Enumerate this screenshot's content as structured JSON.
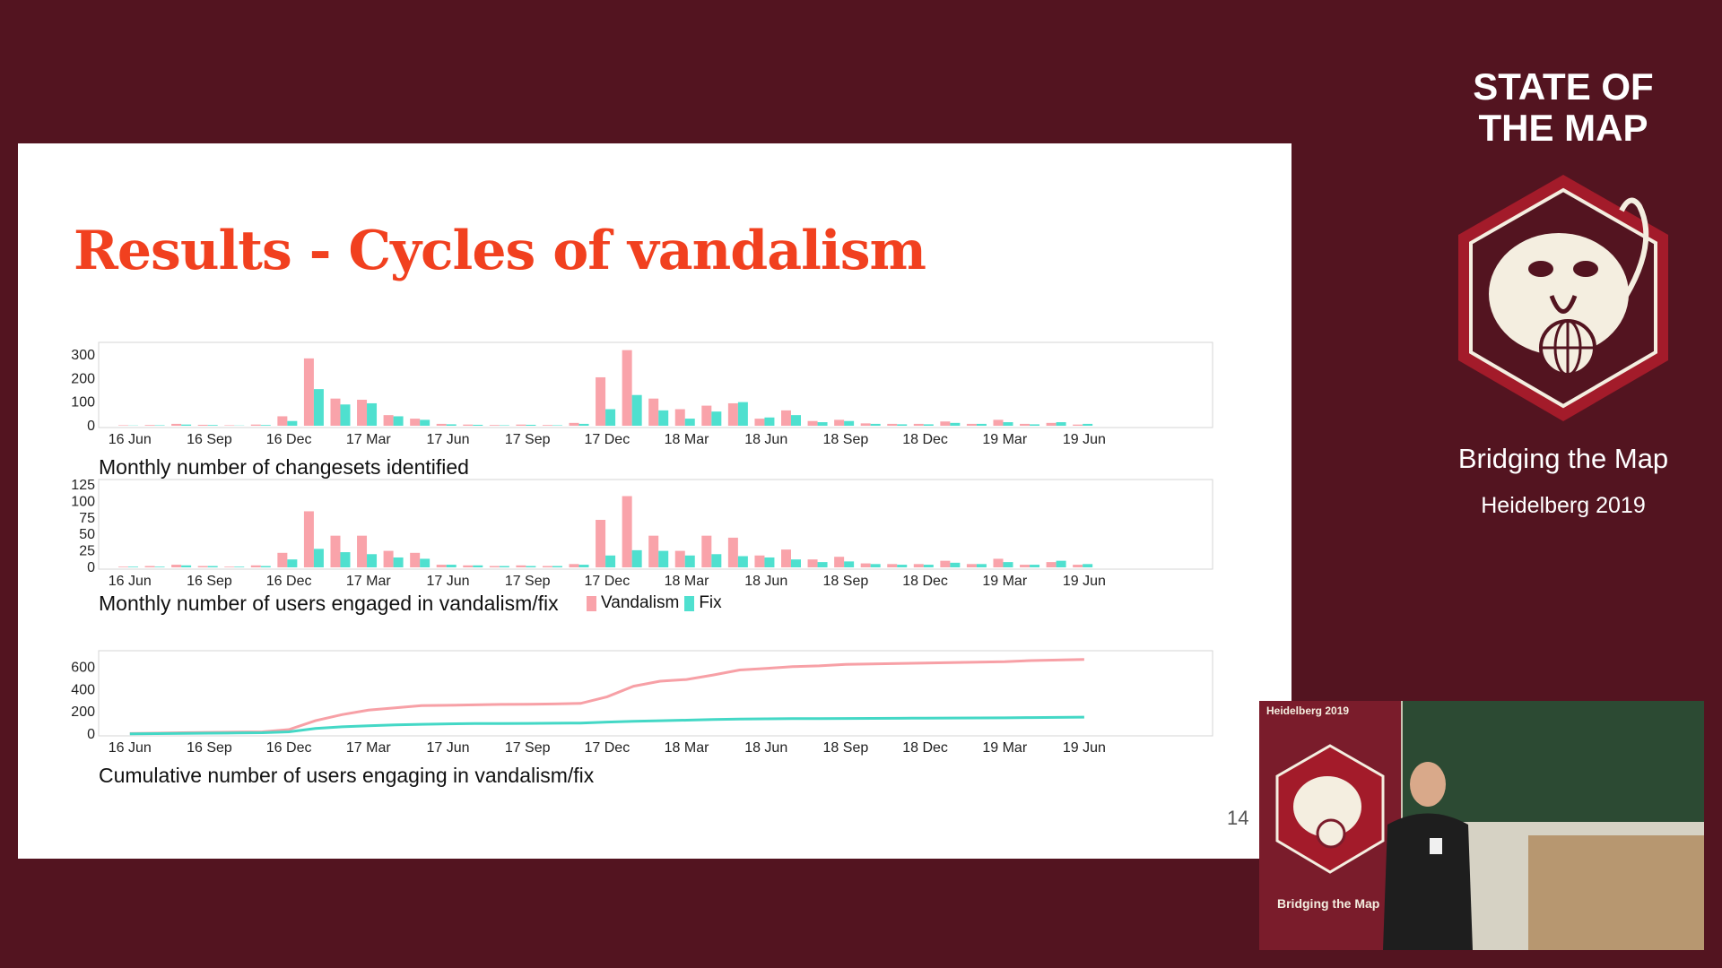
{
  "slide": {
    "title": "Results - Cycles of vandalism",
    "number": "14",
    "legend": {
      "vandalism": "Vandalism",
      "fix": "Fix"
    }
  },
  "colors": {
    "vandalism": "#f9a3aa",
    "fix": "#4fe0cf",
    "vandalism_line": "#f7a0a6",
    "fix_line": "#44d8c6",
    "title": "#f1401f",
    "background": "#531420"
  },
  "sidebar": {
    "brand_line1": "STATE OF",
    "brand_line2": "THE MAP",
    "tagline": "Bridging the Map",
    "event": "Heidelberg 2019"
  },
  "video": {
    "banner_city": "Heidelberg 2019",
    "banner_tagline": "Bridging the Map"
  },
  "chart_data": [
    {
      "type": "bar",
      "title": "Monthly number of changesets identified",
      "x_tick_labels": [
        "16 Jun",
        "16 Sep",
        "16 Dec",
        "17 Mar",
        "17 Jun",
        "17 Sep",
        "17 Dec",
        "18 Mar",
        "18 Jun",
        "18 Sep",
        "18 Dec",
        "19 Mar",
        "19 Jun"
      ],
      "yticks": [
        0,
        100,
        200,
        300
      ],
      "ylim": [
        0,
        330
      ],
      "categories": [
        "16 Jun",
        "16 Jul",
        "16 Aug",
        "16 Sep",
        "16 Oct",
        "16 Nov",
        "16 Dec",
        "17 Jan",
        "17 Feb",
        "17 Mar",
        "17 Apr",
        "17 May",
        "17 Jun",
        "17 Jul",
        "17 Aug",
        "17 Sep",
        "17 Oct",
        "17 Nov",
        "17 Dec",
        "18 Jan",
        "18 Feb",
        "18 Mar",
        "18 Apr",
        "18 May",
        "18 Jun",
        "18 Jul",
        "18 Aug",
        "18 Sep",
        "18 Oct",
        "18 Nov",
        "18 Dec",
        "19 Jan",
        "19 Feb",
        "19 Mar",
        "19 Apr",
        "19 May",
        "19 Jun"
      ],
      "series": [
        {
          "name": "Vandalism",
          "values": [
            2,
            3,
            8,
            4,
            2,
            5,
            40,
            285,
            115,
            110,
            45,
            30,
            8,
            5,
            3,
            5,
            3,
            12,
            205,
            320,
            115,
            70,
            85,
            95,
            30,
            65,
            20,
            25,
            10,
            8,
            8,
            18,
            8,
            25,
            8,
            12,
            5
          ]
        },
        {
          "name": "Fix",
          "values": [
            1,
            2,
            5,
            3,
            1,
            3,
            20,
            155,
            90,
            95,
            40,
            25,
            6,
            4,
            2,
            4,
            2,
            8,
            70,
            130,
            65,
            30,
            60,
            100,
            35,
            45,
            15,
            20,
            8,
            6,
            6,
            12,
            8,
            15,
            6,
            15,
            8
          ]
        }
      ]
    },
    {
      "type": "bar",
      "title": "Monthly number of users engaged in vandalism/fix",
      "x_tick_labels": [
        "16 Jun",
        "16 Sep",
        "16 Dec",
        "17 Mar",
        "17 Jun",
        "17 Sep",
        "17 Dec",
        "18 Mar",
        "18 Jun",
        "18 Sep",
        "18 Dec",
        "19 Mar",
        "19 Jun"
      ],
      "yticks": [
        0,
        25,
        50,
        75,
        100,
        125
      ],
      "ylim": [
        0,
        125
      ],
      "categories": [
        "16 Jun",
        "16 Jul",
        "16 Aug",
        "16 Sep",
        "16 Oct",
        "16 Nov",
        "16 Dec",
        "17 Jan",
        "17 Feb",
        "17 Mar",
        "17 Apr",
        "17 May",
        "17 Jun",
        "17 Jul",
        "17 Aug",
        "17 Sep",
        "17 Oct",
        "17 Nov",
        "17 Dec",
        "18 Jan",
        "18 Feb",
        "18 Mar",
        "18 Apr",
        "18 May",
        "18 Jun",
        "18 Jul",
        "18 Aug",
        "18 Sep",
        "18 Oct",
        "18 Nov",
        "18 Dec",
        "19 Jan",
        "19 Feb",
        "19 Mar",
        "19 Apr",
        "19 May",
        "19 Jun"
      ],
      "series": [
        {
          "name": "Vandalism",
          "values": [
            1,
            2,
            4,
            2,
            1,
            3,
            22,
            85,
            48,
            48,
            25,
            22,
            4,
            3,
            2,
            3,
            2,
            5,
            72,
            108,
            48,
            25,
            48,
            45,
            18,
            27,
            12,
            16,
            6,
            5,
            5,
            10,
            5,
            13,
            4,
            8,
            4
          ]
        },
        {
          "name": "Fix",
          "values": [
            1,
            1,
            3,
            2,
            1,
            2,
            12,
            28,
            23,
            20,
            15,
            13,
            4,
            3,
            2,
            2,
            2,
            4,
            18,
            26,
            25,
            18,
            20,
            17,
            15,
            12,
            8,
            9,
            5,
            4,
            4,
            7,
            5,
            8,
            4,
            10,
            5
          ]
        }
      ]
    },
    {
      "type": "line",
      "title": "Cumulative number of users engaging in vandalism/fix",
      "x_tick_labels": [
        "16 Jun",
        "16 Sep",
        "16 Dec",
        "17 Mar",
        "17 Jun",
        "17 Sep",
        "17 Dec",
        "18 Mar",
        "18 Jun",
        "18 Sep",
        "18 Dec",
        "19 Mar",
        "19 Jun"
      ],
      "yticks": [
        0,
        200,
        400,
        600
      ],
      "ylim": [
        0,
        700
      ],
      "categories": [
        "16 Jun",
        "16 Jul",
        "16 Aug",
        "16 Sep",
        "16 Oct",
        "16 Nov",
        "16 Dec",
        "17 Jan",
        "17 Feb",
        "17 Mar",
        "17 Apr",
        "17 May",
        "17 Jun",
        "17 Jul",
        "17 Aug",
        "17 Sep",
        "17 Oct",
        "17 Nov",
        "17 Dec",
        "18 Jan",
        "18 Feb",
        "18 Mar",
        "18 Apr",
        "18 May",
        "18 Jun",
        "18 Jul",
        "18 Aug",
        "18 Sep",
        "18 Oct",
        "18 Nov",
        "18 Dec",
        "19 Jan",
        "19 Feb",
        "19 Mar",
        "19 Apr",
        "19 May",
        "19 Jun"
      ],
      "series": [
        {
          "name": "Vandalism",
          "values": [
            5,
            8,
            12,
            15,
            18,
            20,
            40,
            120,
            175,
            215,
            235,
            255,
            258,
            262,
            266,
            268,
            270,
            275,
            335,
            430,
            475,
            490,
            530,
            575,
            590,
            605,
            612,
            625,
            630,
            633,
            638,
            642,
            646,
            650,
            660,
            665,
            670
          ]
        },
        {
          "name": "Fix",
          "values": [
            2,
            4,
            6,
            8,
            10,
            12,
            20,
            50,
            65,
            75,
            82,
            88,
            92,
            94,
            95,
            96,
            97,
            99,
            108,
            115,
            120,
            125,
            130,
            135,
            137,
            138,
            139,
            140,
            141,
            142,
            143,
            144,
            145,
            146,
            148,
            150,
            152
          ]
        }
      ]
    }
  ]
}
